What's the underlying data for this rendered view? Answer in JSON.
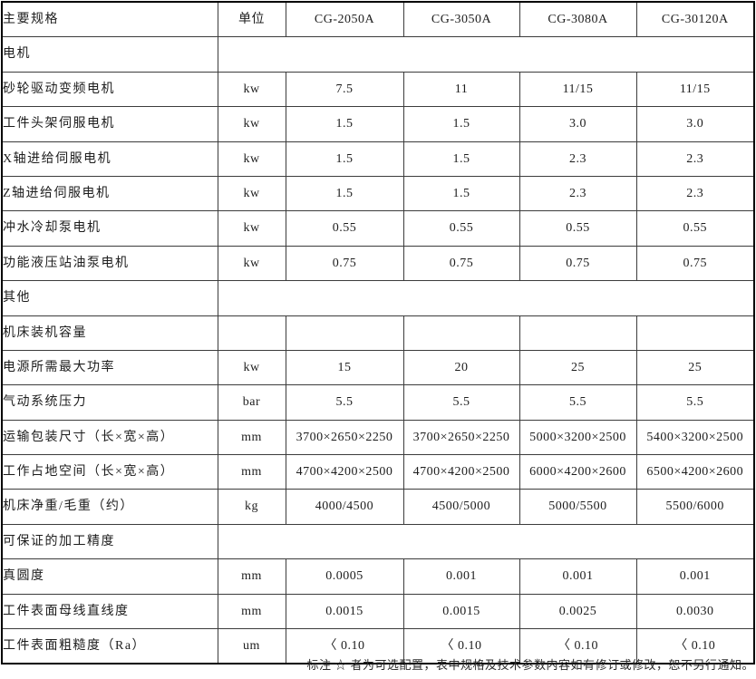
{
  "table": {
    "header": {
      "spec": "主要规格",
      "unit": "单位",
      "models": [
        "CG-2050A",
        "CG-3050A",
        "CG-3080A",
        "CG-30120A"
      ]
    },
    "rows": [
      {
        "type": "section",
        "label": "电机"
      },
      {
        "type": "data",
        "label": "砂轮驱动变频电机",
        "unit": "kw",
        "values": [
          "7.5",
          "11",
          "11/15",
          "11/15"
        ]
      },
      {
        "type": "data",
        "label": "工件头架伺服电机",
        "unit": "kw",
        "values": [
          "1.5",
          "1.5",
          "3.0",
          "3.0"
        ]
      },
      {
        "type": "data",
        "label": "X轴进给伺服电机",
        "unit": "kw",
        "values": [
          "1.5",
          "1.5",
          "2.3",
          "2.3"
        ]
      },
      {
        "type": "data",
        "label": "Z轴进给伺服电机",
        "unit": "kw",
        "values": [
          "1.5",
          "1.5",
          "2.3",
          "2.3"
        ]
      },
      {
        "type": "data",
        "label": "冲水冷却泵电机",
        "unit": "kw",
        "values": [
          "0.55",
          "0.55",
          "0.55",
          "0.55"
        ]
      },
      {
        "type": "data",
        "label": "功能液压站油泵电机",
        "unit": "kw",
        "values": [
          "0.75",
          "0.75",
          "0.75",
          "0.75"
        ]
      },
      {
        "type": "section",
        "label": "其他"
      },
      {
        "type": "data",
        "label": "机床装机容量",
        "unit": "",
        "values": [
          "",
          "",
          "",
          ""
        ]
      },
      {
        "type": "data",
        "label": "电源所需最大功率",
        "unit": "kw",
        "values": [
          "15",
          "20",
          "25",
          "25"
        ]
      },
      {
        "type": "data",
        "label": "气动系统压力",
        "unit": "bar",
        "values": [
          "5.5",
          "5.5",
          "5.5",
          "5.5"
        ]
      },
      {
        "type": "data",
        "label": "运输包装尺寸（长×宽×高）",
        "unit": "mm",
        "values": [
          "3700×2650×2250",
          "3700×2650×2250",
          "5000×3200×2500",
          "5400×3200×2500"
        ]
      },
      {
        "type": "data",
        "label": "工作占地空间（长×宽×高）",
        "unit": "mm",
        "values": [
          "4700×4200×2500",
          "4700×4200×2500",
          "6000×4200×2600",
          "6500×4200×2600"
        ]
      },
      {
        "type": "data",
        "label": "机床净重/毛重（约）",
        "unit": "kg",
        "values": [
          "4000/4500",
          "4500/5000",
          "5000/5500",
          "5500/6000"
        ]
      },
      {
        "type": "section",
        "label": "可保证的加工精度"
      },
      {
        "type": "data",
        "label": "真圆度",
        "unit": "mm",
        "values": [
          "0.0005",
          "0.001",
          "0.001",
          "0.001"
        ]
      },
      {
        "type": "data",
        "label": "工件表面母线直线度",
        "unit": "mm",
        "values": [
          "0.0015",
          "0.0015",
          "0.0025",
          "0.0030"
        ]
      },
      {
        "type": "data",
        "label": "工件表面粗糙度（Ra）",
        "unit": "um",
        "values": [
          "〈 0.10",
          "〈 0.10",
          "〈 0.10",
          "〈 0.10"
        ]
      }
    ]
  },
  "footer": {
    "note": "标注 ☆ 者为可选配置，表中规格及技术参数内容如有修订或修改，恕不另行通知。"
  }
}
